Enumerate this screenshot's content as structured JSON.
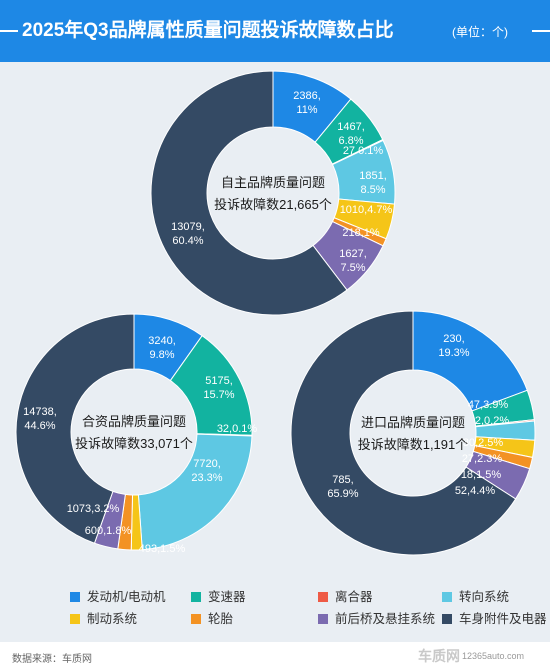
{
  "header": {
    "title": "2025年Q3品牌属性质量问题投诉故障数占比",
    "unit": "(单位：个)"
  },
  "colors": [
    "#1e88e5",
    "#12b3a0",
    "#ee5a45",
    "#5ec8e3",
    "#f5c518",
    "#f39223",
    "#7b6bb0",
    "#344a64"
  ],
  "legend": [
    "发动机/电动机",
    "变速器",
    "离合器",
    "转向系统",
    "制动系统",
    "轮胎",
    "前后桥及悬挂系统",
    "车身附件及电器"
  ],
  "chart_data": [
    {
      "type": "pie",
      "center_label": [
        "自主品牌质量问题",
        "投诉故障数21,665个"
      ],
      "categories": [
        "发动机/电动机",
        "变速器",
        "离合器",
        "转向系统",
        "制动系统",
        "轮胎",
        "前后桥及悬挂系统",
        "车身附件及电器"
      ],
      "values": [
        2386,
        1467,
        27,
        1851,
        1010,
        218,
        1627,
        13079
      ],
      "labels": [
        "2386,\n11%",
        "1467,\n6.8%",
        "27 0.1%",
        "1851,\n8.5%",
        "1010,4.7%",
        "218,1%",
        "1627,\n7.5%",
        "13079,\n60.4%"
      ]
    },
    {
      "type": "pie",
      "center_label": [
        "合资品牌质量问题",
        "投诉故障数33,071个"
      ],
      "categories": [
        "发动机/电动机",
        "变速器",
        "离合器",
        "转向系统",
        "制动系统",
        "轮胎",
        "前后桥及悬挂系统",
        "车身附件及电器"
      ],
      "values": [
        3240,
        5175,
        32,
        7720,
        493,
        600,
        1073,
        14738
      ],
      "labels": [
        "3240,\n9.8%",
        "5175,\n15.7%",
        "32,0.1%",
        "7720,\n23.3%",
        "493,1.5%",
        "600,1.8%",
        "1073,3.2%",
        "14738,\n44.6%"
      ]
    },
    {
      "type": "pie",
      "center_label": [
        "进口品牌质量问题",
        "投诉故障数1,191个"
      ],
      "categories": [
        "发动机/电动机",
        "变速器",
        "离合器",
        "转向系统",
        "制动系统",
        "轮胎",
        "前后桥及悬挂系统",
        "车身附件及电器"
      ],
      "values": [
        230,
        47,
        2,
        30,
        27,
        18,
        52,
        785
      ],
      "labels": [
        "230,\n19.3%",
        "47,3.9%",
        "2,0.2%",
        "30,2.5%",
        "27,2.3%",
        "18,1.5%",
        "52,4.4%",
        "785,\n65.9%"
      ]
    }
  ],
  "footer": {
    "source": "数据来源：车质网",
    "logo": "车质网",
    "site": "12365auto.com"
  }
}
